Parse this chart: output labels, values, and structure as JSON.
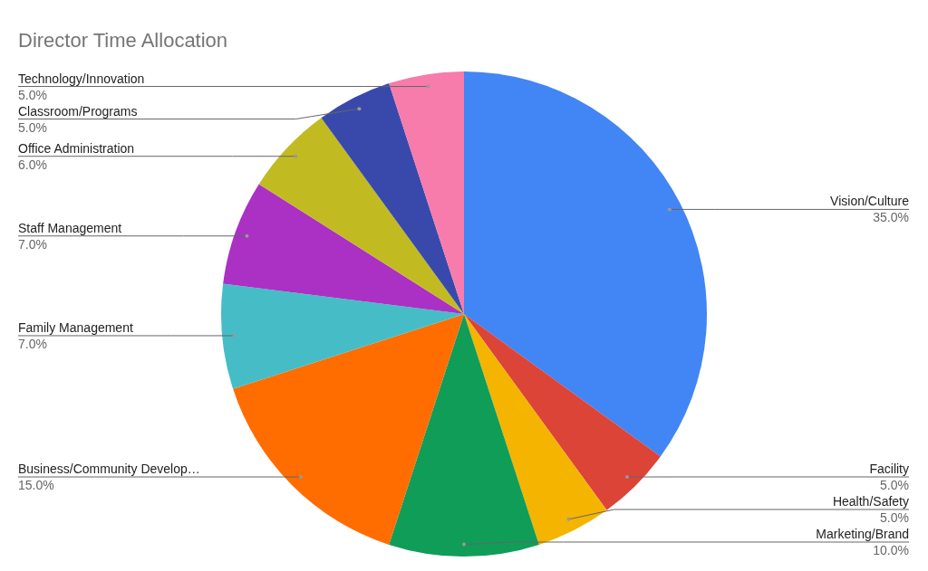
{
  "chart_data": {
    "type": "pie",
    "title": "Director Time Allocation",
    "categories": [
      "Vision/Culture",
      "Facility",
      "Health/Safety",
      "Marketing/Brand",
      "Business/Community Develop…",
      "Family Management",
      "Staff Management",
      "Office Administration",
      "Classroom/Programs",
      "Technology/Innovation"
    ],
    "values": [
      35,
      5,
      5,
      10,
      15,
      7,
      7,
      6,
      5,
      5
    ],
    "value_labels": [
      "35.0%",
      "5.0%",
      "5.0%",
      "10.0%",
      "15.0%",
      "7.0%",
      "7.0%",
      "6.0%",
      "5.0%",
      "5.0%"
    ],
    "colors": [
      "#4285f4",
      "#db4437",
      "#f4b400",
      "#0f9d58",
      "#ff6d00",
      "#46bdc6",
      "#ab30c4",
      "#c1bb21",
      "#3949ab",
      "#f77bab"
    ],
    "legend": false
  }
}
